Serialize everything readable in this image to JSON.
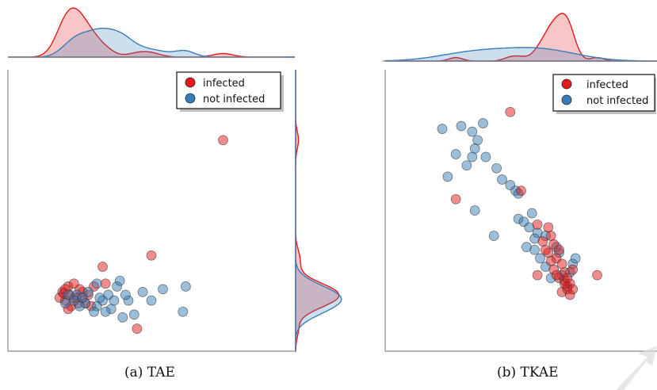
{
  "colors": {
    "infected": "#e41a1c",
    "not_infected": "#377eb8",
    "axis": "#888888"
  },
  "legend": {
    "infected_label": "infected",
    "not_infected_label": "not infected",
    "placement": "top-right"
  },
  "captions": {
    "a": "(a) TAE",
    "b": "(b) TKAE"
  },
  "chart_data": [
    {
      "type": "scatter",
      "title": "",
      "xlabel": "",
      "ylabel": "",
      "xlim": [
        0,
        10
      ],
      "ylim": [
        0,
        10
      ],
      "grid": false,
      "marginals": [
        "top",
        "right"
      ],
      "series": [
        {
          "name": "infected",
          "points": [
            [
              7.5,
              7.5
            ],
            [
              3.3,
              3.0
            ],
            [
              5.0,
              3.4
            ],
            [
              4.5,
              0.8
            ],
            [
              3.4,
              2.4
            ],
            [
              1.9,
              2.1
            ],
            [
              2.1,
              2.3
            ],
            [
              2.6,
              2.1
            ],
            [
              2.3,
              1.9
            ],
            [
              2.0,
              1.8
            ],
            [
              2.5,
              2.2
            ],
            [
              1.8,
              1.9
            ],
            [
              2.2,
              1.6
            ],
            [
              2.7,
              1.7
            ],
            [
              2.4,
              1.9
            ],
            [
              2.8,
              2.0
            ],
            [
              2.3,
              2.4
            ],
            [
              2.9,
              1.6
            ],
            [
              2.1,
              1.5
            ],
            [
              2.6,
              1.9
            ],
            [
              1.95,
              2.05
            ],
            [
              2.45,
              1.7
            ],
            [
              2.15,
              2.0
            ],
            [
              2.0,
              2.2
            ],
            [
              3.0,
              2.3
            ]
          ]
        },
        {
          "name": "not infected",
          "points": [
            [
              2.1,
              2.0
            ],
            [
              2.4,
              2.0
            ],
            [
              2.7,
              1.7
            ],
            [
              3.1,
              1.6
            ],
            [
              3.5,
              2.0
            ],
            [
              3.8,
              2.3
            ],
            [
              4.0,
              1.2
            ],
            [
              4.2,
              1.8
            ],
            [
              4.7,
              2.1
            ],
            [
              5.4,
              2.2
            ],
            [
              6.1,
              1.4
            ],
            [
              6.2,
              2.3
            ],
            [
              3.0,
              1.4
            ],
            [
              3.3,
              1.8
            ],
            [
              3.6,
              1.5
            ],
            [
              2.5,
              1.6
            ],
            [
              2.8,
              2.1
            ],
            [
              3.1,
              2.4
            ],
            [
              3.9,
              2.5
            ],
            [
              4.4,
              1.3
            ],
            [
              5.0,
              1.8
            ],
            [
              2.3,
              1.8
            ],
            [
              3.2,
              1.9
            ],
            [
              2.6,
              1.9
            ],
            [
              3.4,
              1.4
            ],
            [
              3.7,
              1.8
            ],
            [
              2.0,
              1.7
            ],
            [
              4.1,
              2.0
            ]
          ]
        }
      ]
    },
    {
      "type": "scatter",
      "title": "",
      "xlabel": "",
      "ylabel": "",
      "xlim": [
        0,
        10
      ],
      "ylim": [
        0,
        10
      ],
      "grid": false,
      "marginals": [
        "top"
      ],
      "series": [
        {
          "name": "infected",
          "points": [
            [
              4.6,
              8.5
            ],
            [
              2.6,
              5.4
            ],
            [
              5.0,
              5.7
            ],
            [
              5.6,
              4.5
            ],
            [
              6.0,
              4.4
            ],
            [
              6.1,
              4.1
            ],
            [
              5.8,
              3.9
            ],
            [
              6.2,
              3.8
            ],
            [
              6.4,
              3.6
            ],
            [
              6.0,
              3.5
            ],
            [
              6.3,
              3.3
            ],
            [
              6.5,
              3.1
            ],
            [
              6.2,
              2.9
            ],
            [
              6.6,
              2.8
            ],
            [
              6.4,
              2.6
            ],
            [
              6.6,
              2.5
            ],
            [
              6.7,
              2.3
            ],
            [
              6.5,
              2.1
            ],
            [
              6.7,
              2.2
            ],
            [
              6.8,
              2.0
            ],
            [
              6.6,
              2.4
            ],
            [
              6.3,
              2.7
            ],
            [
              5.6,
              2.7
            ],
            [
              7.8,
              2.7
            ],
            [
              6.9,
              2.9
            ],
            [
              6.1,
              3.2
            ],
            [
              5.9,
              3.6
            ],
            [
              6.7,
              2.6
            ],
            [
              6.8,
              2.4
            ],
            [
              6.9,
              2.2
            ]
          ]
        },
        {
          "name": "not infected",
          "points": [
            [
              2.1,
              7.9
            ],
            [
              2.8,
              8.0
            ],
            [
              3.6,
              8.1
            ],
            [
              3.2,
              7.8
            ],
            [
              3.4,
              7.5
            ],
            [
              3.3,
              7.2
            ],
            [
              2.6,
              7.0
            ],
            [
              3.2,
              6.9
            ],
            [
              3.0,
              6.6
            ],
            [
              3.7,
              6.9
            ],
            [
              2.3,
              6.2
            ],
            [
              4.1,
              6.5
            ],
            [
              4.3,
              6.1
            ],
            [
              4.6,
              5.9
            ],
            [
              4.8,
              5.7
            ],
            [
              4.9,
              5.6
            ],
            [
              3.3,
              5.0
            ],
            [
              4.9,
              4.7
            ],
            [
              5.1,
              4.6
            ],
            [
              5.4,
              4.9
            ],
            [
              5.3,
              4.4
            ],
            [
              4.0,
              4.1
            ],
            [
              5.6,
              4.2
            ],
            [
              5.9,
              4.1
            ],
            [
              5.2,
              3.7
            ],
            [
              5.5,
              3.6
            ],
            [
              5.7,
              3.3
            ],
            [
              5.9,
              3.0
            ],
            [
              6.4,
              3.5
            ],
            [
              6.9,
              3.1
            ],
            [
              7.0,
              3.3
            ],
            [
              6.1,
              2.6
            ],
            [
              6.5,
              2.7
            ],
            [
              5.5,
              4.0
            ],
            [
              6.3,
              3.7
            ],
            [
              6.8,
              2.8
            ]
          ]
        }
      ]
    }
  ]
}
